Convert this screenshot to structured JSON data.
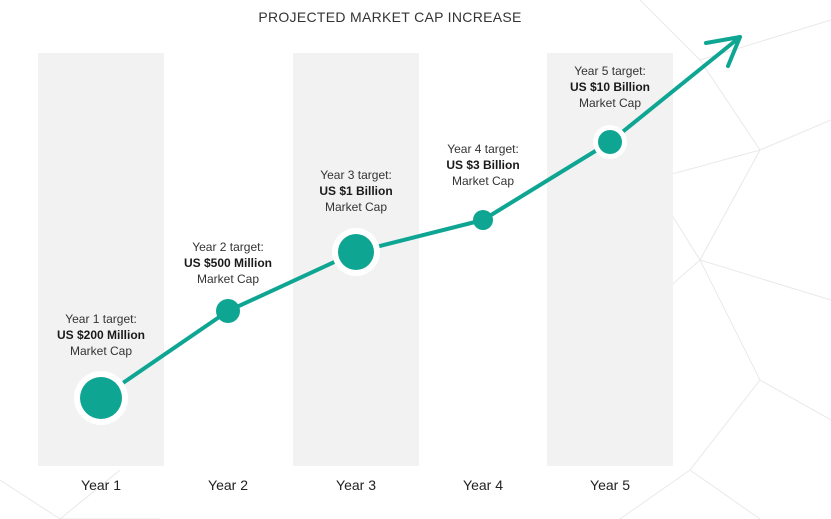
{
  "chart_data": {
    "type": "line",
    "title": "PROJECTED MARKET CAP INCREASE",
    "categories": [
      "Year 1",
      "Year 2",
      "Year 3",
      "Year 4",
      "Year 5"
    ],
    "series": [
      {
        "values": [
          200000000,
          500000000,
          1000000000,
          3000000000,
          10000000000
        ]
      }
    ],
    "annotations": [
      {
        "line1": "Year 1 target:",
        "line2": "US $200 Million",
        "line3": "Market Cap"
      },
      {
        "line1": "Year 2 target:",
        "line2": "US $500 Million",
        "line3": "Market Cap"
      },
      {
        "line1": "Year 3 target:",
        "line2": "US $1 Billion",
        "line3": "Market Cap"
      },
      {
        "line1": "Year 4 target:",
        "line2": "US $3 Billion",
        "line3": "Market Cap"
      },
      {
        "line1": "Year 5 target:",
        "line2": "US $10 Billion",
        "line3": "Market Cap"
      }
    ],
    "legend": "none",
    "grid": false,
    "colors": {
      "line": "#0fa593",
      "column": "#f2f2f2",
      "text": "#333333"
    }
  }
}
